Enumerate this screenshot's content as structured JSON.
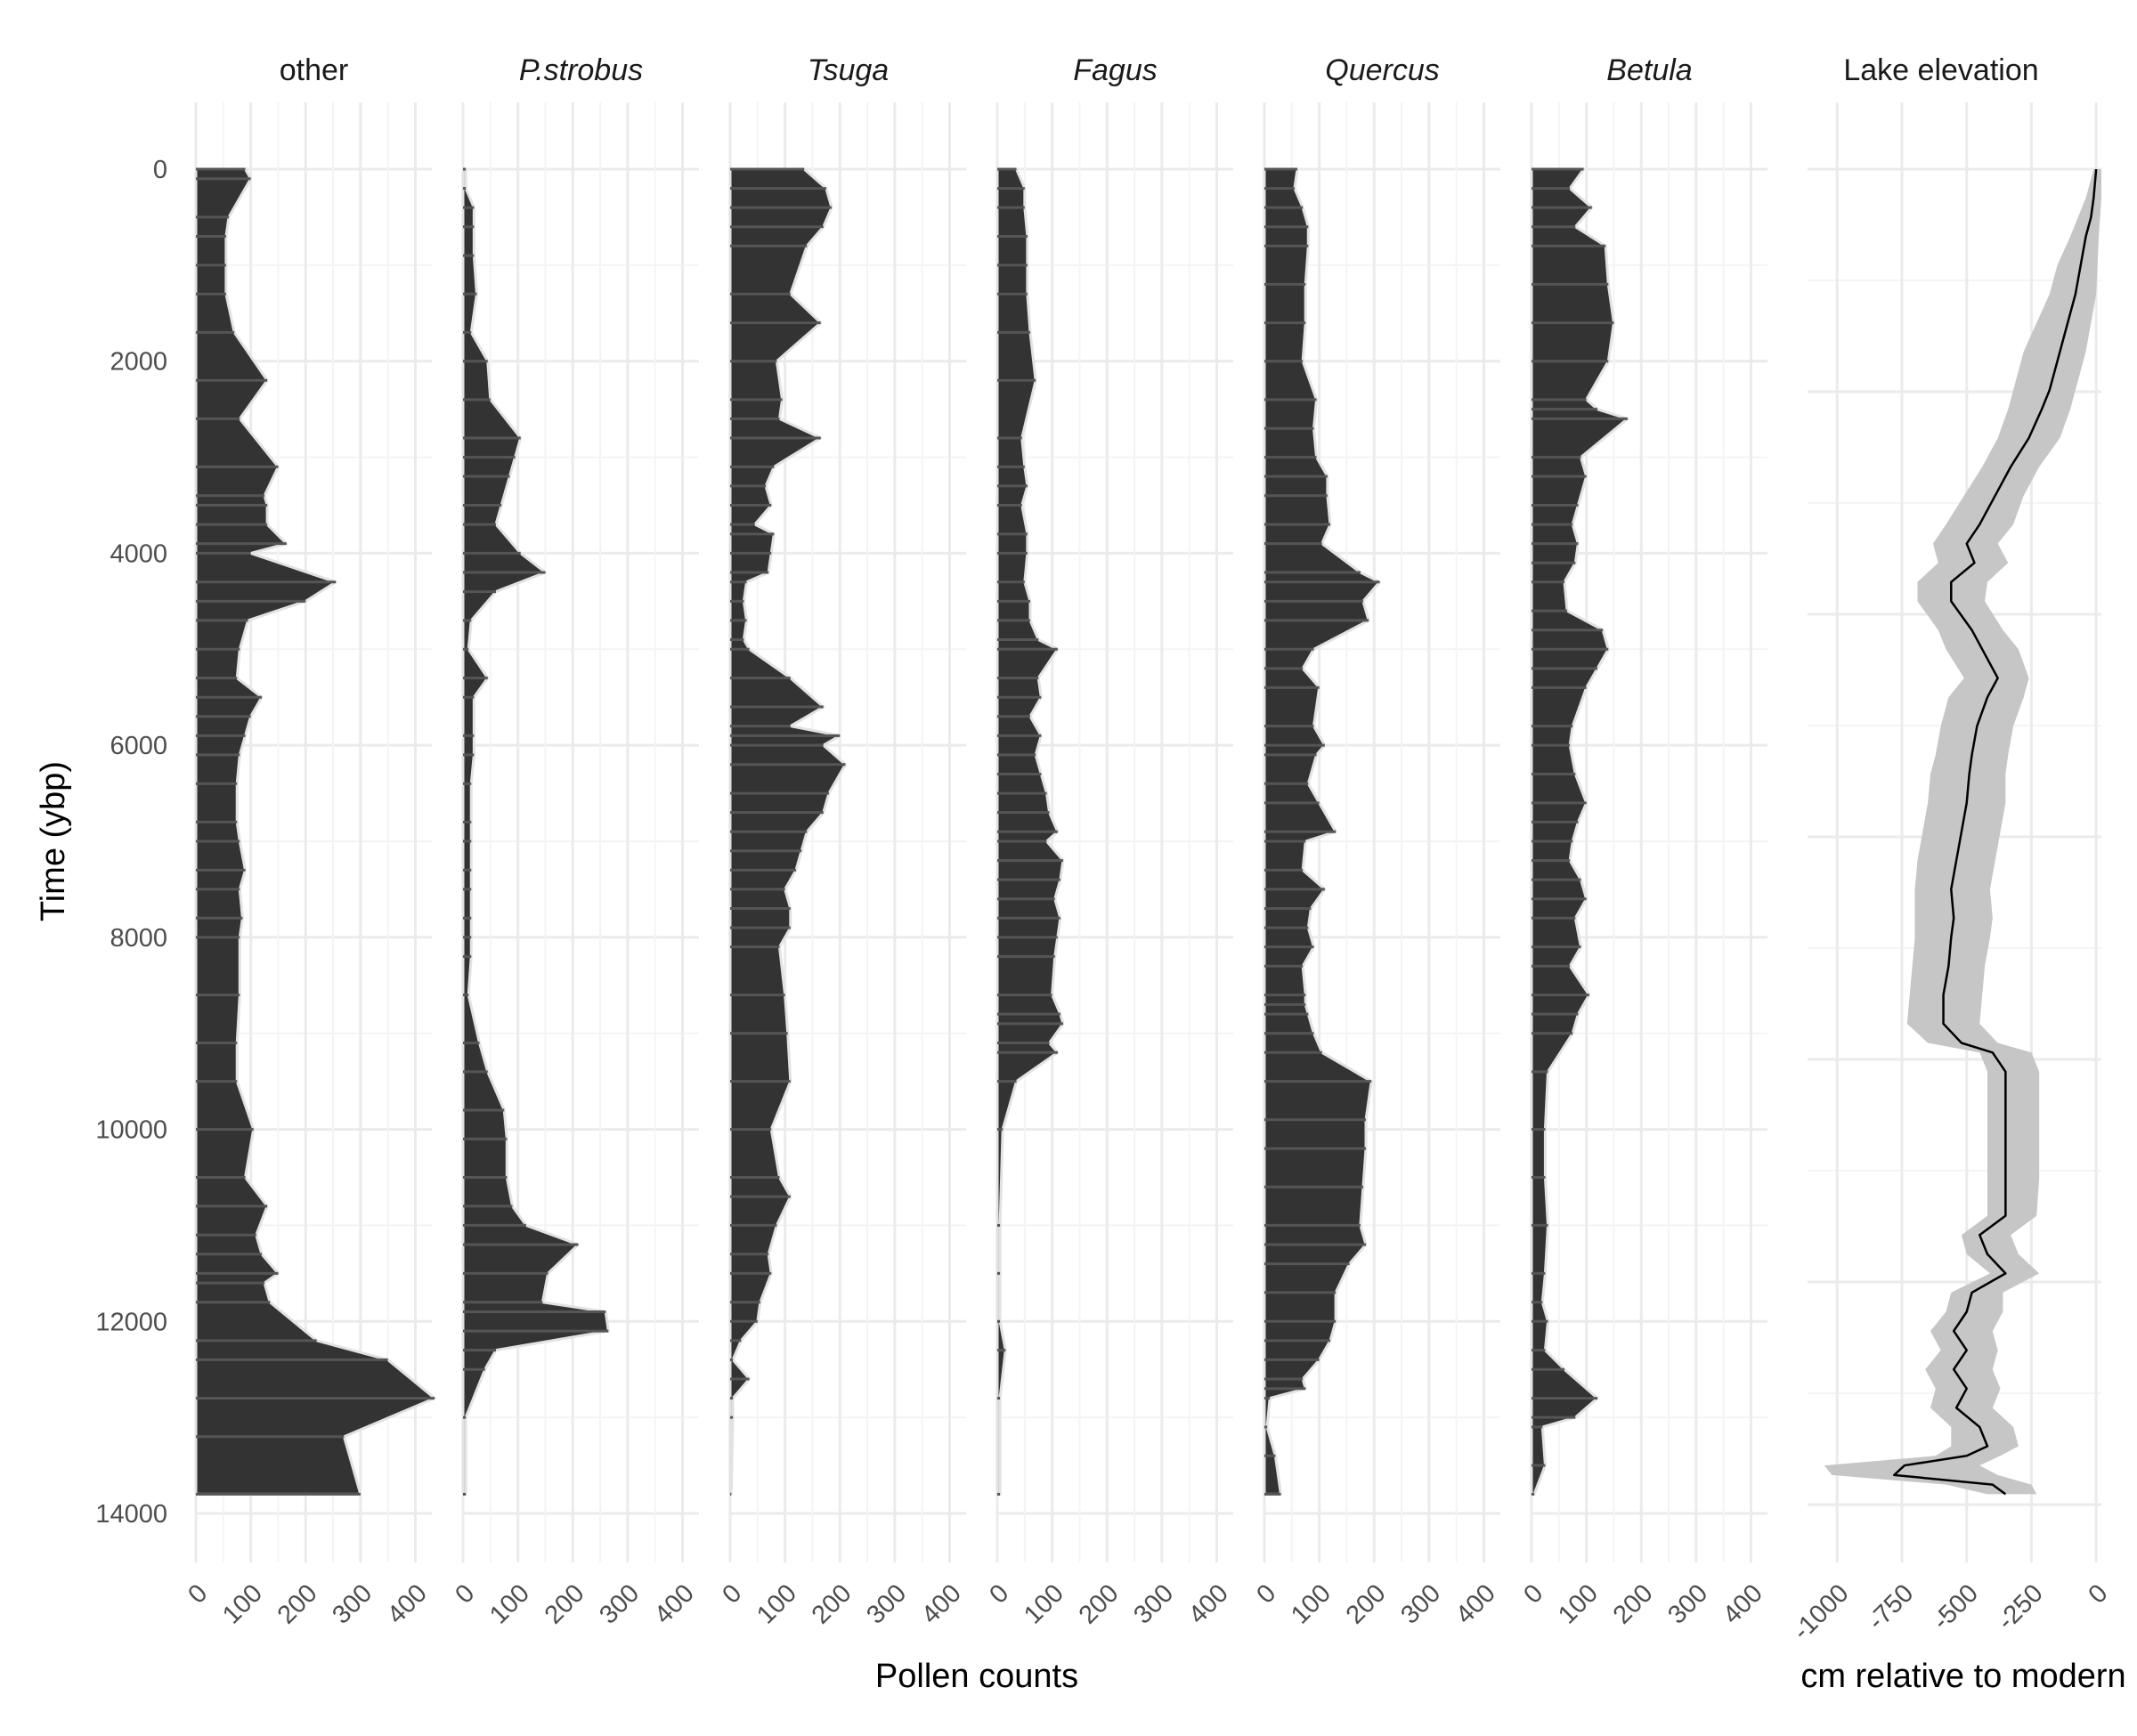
{
  "chart_data": {
    "type": "area",
    "y_axis": {
      "label": "Time (ybp)",
      "lim": [
        0,
        14000
      ],
      "ticks": [
        0,
        2000,
        4000,
        6000,
        8000,
        10000,
        12000,
        14000
      ],
      "reversed": true
    },
    "pollen_x_axis": {
      "label": "Pollen counts",
      "lim": [
        0,
        430
      ],
      "ticks": [
        0,
        100,
        200,
        300,
        400
      ]
    },
    "elevation_x_axis": {
      "label": "cm relative to modern",
      "lim": [
        -1080,
        20
      ],
      "ticks": [
        -1000,
        -750,
        -500,
        -250,
        0
      ]
    },
    "grid": true,
    "colors": {
      "fill": "#333333",
      "outline": "#e2e2e2",
      "grid": "#ebebeb",
      "ribbon": "#c6c6c6",
      "line": "#000000"
    },
    "series": [
      {
        "name": "other",
        "italic": false,
        "x": [
          90,
          100,
          60,
          55,
          55,
          55,
          70,
          130,
          80,
          150,
          125,
          130,
          130,
          165,
          100,
          255,
          200,
          95,
          80,
          75,
          120,
          100,
          90,
          80,
          75,
          75,
          80,
          90,
          80,
          85,
          80,
          80,
          75,
          75,
          105,
          90,
          130,
          110,
          120,
          150,
          125,
          135,
          220,
          350,
          435,
          270,
          300
        ],
        "y": [
          0,
          100,
          500,
          700,
          1000,
          1300,
          1700,
          2200,
          2600,
          3100,
          3400,
          3500,
          3700,
          3900,
          4000,
          4300,
          4500,
          4700,
          5000,
          5300,
          5500,
          5700,
          5900,
          6100,
          6400,
          6800,
          7000,
          7300,
          7500,
          7800,
          8000,
          8600,
          9100,
          9500,
          10000,
          10500,
          10800,
          11100,
          11300,
          11500,
          11600,
          11800,
          12200,
          12400,
          12800,
          13200,
          13800
        ]
      },
      {
        "name": "P.strobus",
        "italic": false,
        "x": [
          5,
          5,
          20,
          20,
          20,
          25,
          15,
          45,
          50,
          105,
          95,
          85,
          70,
          60,
          105,
          150,
          60,
          15,
          10,
          45,
          20,
          20,
          20,
          15,
          15,
          15,
          15,
          15,
          15,
          15,
          15,
          10,
          30,
          45,
          75,
          80,
          80,
          90,
          115,
          210,
          155,
          145,
          260,
          265,
          60,
          40,
          5,
          5
        ],
        "y": [
          0,
          200,
          400,
          600,
          900,
          1300,
          1700,
          2000,
          2400,
          2800,
          3000,
          3200,
          3500,
          3700,
          4000,
          4200,
          4400,
          4700,
          5000,
          5300,
          5500,
          5900,
          6100,
          6400,
          6800,
          7000,
          7300,
          7500,
          7800,
          8000,
          8200,
          8600,
          9100,
          9400,
          9800,
          10100,
          10500,
          10800,
          11000,
          11200,
          11500,
          11800,
          11900,
          12100,
          12300,
          12500,
          13000,
          13800
        ]
      },
      {
        "name": "Tsuga",
        "italic": false,
        "x": [
          135,
          175,
          185,
          170,
          140,
          110,
          165,
          85,
          95,
          90,
          165,
          80,
          65,
          75,
          45,
          80,
          75,
          70,
          30,
          25,
          30,
          25,
          35,
          110,
          170,
          110,
          200,
          170,
          210,
          180,
          170,
          140,
          130,
          120,
          100,
          110,
          110,
          90,
          100,
          105,
          110,
          75,
          90,
          110,
          85,
          70,
          75,
          55,
          50,
          20,
          5,
          35,
          5,
          5,
          2
        ],
        "y": [
          0,
          200,
          400,
          600,
          800,
          1300,
          1600,
          2000,
          2400,
          2600,
          2800,
          3100,
          3300,
          3500,
          3700,
          3800,
          4000,
          4200,
          4300,
          4500,
          4700,
          4900,
          5000,
          5300,
          5600,
          5800,
          5900,
          6000,
          6200,
          6500,
          6700,
          6900,
          7100,
          7300,
          7500,
          7700,
          7900,
          8100,
          8600,
          9000,
          9500,
          10000,
          10500,
          10700,
          11000,
          11300,
          11500,
          11800,
          12000,
          12200,
          12400,
          12600,
          12800,
          13000,
          13800
        ]
      },
      {
        "name": "Fagus",
        "italic": false,
        "x": [
          35,
          50,
          50,
          55,
          55,
          55,
          60,
          70,
          45,
          50,
          55,
          45,
          55,
          55,
          50,
          60,
          60,
          75,
          110,
          75,
          80,
          60,
          80,
          70,
          80,
          90,
          95,
          110,
          90,
          120,
          115,
          105,
          115,
          110,
          105,
          100,
          115,
          120,
          95,
          110,
          35,
          10,
          5,
          5,
          5,
          15,
          5,
          5
        ],
        "y": [
          0,
          200,
          400,
          700,
          1000,
          1300,
          1700,
          2200,
          2800,
          3100,
          3300,
          3500,
          3800,
          4000,
          4300,
          4500,
          4700,
          4900,
          5000,
          5300,
          5500,
          5700,
          5900,
          6100,
          6300,
          6500,
          6700,
          6900,
          7000,
          7200,
          7400,
          7600,
          7800,
          8000,
          8200,
          8600,
          8800,
          8900,
          9100,
          9200,
          9500,
          10000,
          11000,
          11500,
          12000,
          12300,
          12800,
          13800
        ]
      },
      {
        "name": "Quercus",
        "italic": false,
        "x": [
          60,
          55,
          70,
          80,
          80,
          75,
          75,
          70,
          95,
          90,
          95,
          115,
          115,
          120,
          105,
          175,
          210,
          180,
          190,
          90,
          70,
          100,
          90,
          110,
          95,
          80,
          100,
          130,
          75,
          70,
          110,
          85,
          80,
          90,
          70,
          75,
          75,
          80,
          90,
          105,
          195,
          185,
          185,
          180,
          175,
          185,
          155,
          130,
          130,
          120,
          100,
          70,
          75,
          10,
          5,
          20,
          30
        ],
        "y": [
          0,
          200,
          400,
          600,
          800,
          1200,
          1600,
          2000,
          2400,
          2700,
          3000,
          3200,
          3400,
          3700,
          3900,
          4200,
          4300,
          4500,
          4700,
          5000,
          5200,
          5400,
          5800,
          6000,
          6100,
          6400,
          6600,
          6900,
          7000,
          7300,
          7500,
          7700,
          7900,
          8100,
          8300,
          8600,
          8700,
          8800,
          9000,
          9200,
          9500,
          9900,
          10200,
          10600,
          11000,
          11200,
          11400,
          11700,
          12000,
          12200,
          12400,
          12600,
          12700,
          12800,
          13100,
          13400,
          13800
        ]
      },
      {
        "name": "Betula",
        "italic": false,
        "x": [
          95,
          70,
          110,
          80,
          135,
          140,
          150,
          140,
          100,
          120,
          175,
          90,
          100,
          85,
          75,
          85,
          80,
          60,
          65,
          130,
          140,
          120,
          100,
          75,
          70,
          80,
          100,
          85,
          75,
          70,
          90,
          100,
          80,
          90,
          70,
          105,
          85,
          75,
          30,
          25,
          25,
          30,
          25,
          20,
          30,
          25,
          60,
          120,
          80,
          20,
          25,
          5
        ],
        "y": [
          0,
          200,
          400,
          600,
          800,
          1200,
          1600,
          2000,
          2400,
          2500,
          2600,
          3000,
          3200,
          3500,
          3700,
          3900,
          4100,
          4300,
          4600,
          4800,
          5000,
          5200,
          5400,
          5800,
          6000,
          6300,
          6600,
          6800,
          7000,
          7200,
          7400,
          7600,
          7800,
          8100,
          8300,
          8600,
          8800,
          9000,
          9400,
          10000,
          10500,
          11000,
          11500,
          11800,
          12000,
          12300,
          12500,
          12800,
          13000,
          13100,
          13500,
          13800
        ]
      }
    ],
    "lake_elevation": {
      "name": "Lake elevation",
      "time": [
        0,
        300,
        500,
        700,
        1000,
        1300,
        1600,
        1900,
        2200,
        2300,
        2500,
        2800,
        3100,
        3400,
        3700,
        3900,
        4100,
        4300,
        4500,
        4800,
        5000,
        5300,
        5500,
        5800,
        6100,
        6300,
        6600,
        6900,
        7200,
        7500,
        7800,
        8000,
        8300,
        8600,
        8900,
        9100,
        9200,
        9400,
        9800,
        10000,
        10500,
        10900,
        11100,
        11300,
        11500,
        11700,
        11900,
        12100,
        12300,
        12500,
        12700,
        12900,
        13100,
        13300,
        13400,
        13500,
        13600,
        13700,
        13800
      ],
      "mean": [
        0,
        -10,
        -20,
        -40,
        -60,
        -80,
        -110,
        -140,
        -170,
        -180,
        -210,
        -260,
        -330,
        -390,
        -450,
        -500,
        -470,
        -560,
        -560,
        -480,
        -440,
        -380,
        -420,
        -460,
        -480,
        -490,
        -500,
        -520,
        -540,
        -560,
        -550,
        -560,
        -570,
        -590,
        -590,
        -520,
        -400,
        -350,
        -350,
        -350,
        -350,
        -350,
        -450,
        -420,
        -350,
        -480,
        -500,
        -550,
        -500,
        -550,
        -500,
        -540,
        -450,
        -420,
        -500,
        -740,
        -780,
        -400,
        -350
      ],
      "lower": [
        -10,
        -40,
        -70,
        -100,
        -150,
        -180,
        -230,
        -280,
        -310,
        -320,
        -340,
        -380,
        -440,
        -510,
        -580,
        -630,
        -610,
        -690,
        -690,
        -610,
        -580,
        -510,
        -570,
        -600,
        -620,
        -640,
        -650,
        -670,
        -690,
        -700,
        -700,
        -700,
        -710,
        -720,
        -730,
        -650,
        -450,
        -420,
        -420,
        -420,
        -420,
        -420,
        -520,
        -500,
        -410,
        -560,
        -580,
        -640,
        -600,
        -660,
        -620,
        -640,
        -560,
        -560,
        -620,
        -1050,
        -1020,
        -580,
        -420
      ],
      "upper": [
        20,
        20,
        15,
        10,
        5,
        0,
        -20,
        -40,
        -70,
        -80,
        -100,
        -140,
        -220,
        -280,
        -320,
        -380,
        -340,
        -420,
        -430,
        -360,
        -300,
        -260,
        -280,
        -320,
        -340,
        -350,
        -350,
        -370,
        -390,
        -410,
        -400,
        -410,
        -430,
        -440,
        -450,
        -380,
        -250,
        -220,
        -220,
        -220,
        -220,
        -230,
        -330,
        -300,
        -220,
        -360,
        -360,
        -400,
        -380,
        -400,
        -370,
        -400,
        -320,
        -300,
        -370,
        -450,
        -380,
        -250,
        -230
      ]
    }
  }
}
